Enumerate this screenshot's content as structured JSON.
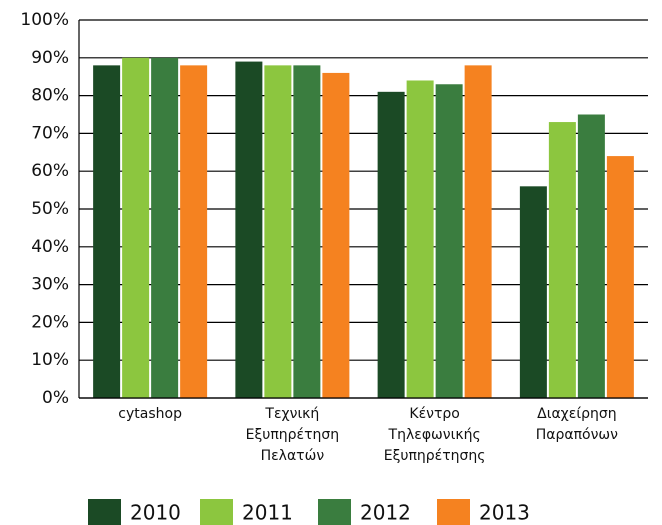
{
  "chart_data": {
    "type": "bar",
    "categories": [
      "cytashop",
      "Τεχνική Εξυπηρέτηση Πελατών",
      "Κέντρο Τηλεφωνικής Εξυπηρέτησης",
      "Διαχείρηση Παραπόνων"
    ],
    "series": [
      {
        "name": "2010",
        "color": "#1b4a25",
        "values": [
          88,
          89,
          81,
          56
        ]
      },
      {
        "name": "2011",
        "color": "#8cc63f",
        "values": [
          90,
          88,
          84,
          73
        ]
      },
      {
        "name": "2012",
        "color": "#3a7d3f",
        "values": [
          90,
          88,
          83,
          75
        ]
      },
      {
        "name": "2013",
        "color": "#f58220",
        "values": [
          88,
          86,
          88,
          64
        ]
      }
    ],
    "ylim": [
      0,
      100
    ],
    "yticks": [
      {
        "value": 0,
        "label": "0%"
      },
      {
        "value": 10,
        "label": "10%"
      },
      {
        "value": 20,
        "label": "20%"
      },
      {
        "value": 30,
        "label": "30%"
      },
      {
        "value": 40,
        "label": "40%"
      },
      {
        "value": 50,
        "label": "50%"
      },
      {
        "value": 60,
        "label": "60%"
      },
      {
        "value": 70,
        "label": "70%"
      },
      {
        "value": 80,
        "label": "80%"
      },
      {
        "value": 90,
        "label": "90%"
      },
      {
        "value": 100,
        "label": "100%"
      }
    ],
    "grid": true
  }
}
